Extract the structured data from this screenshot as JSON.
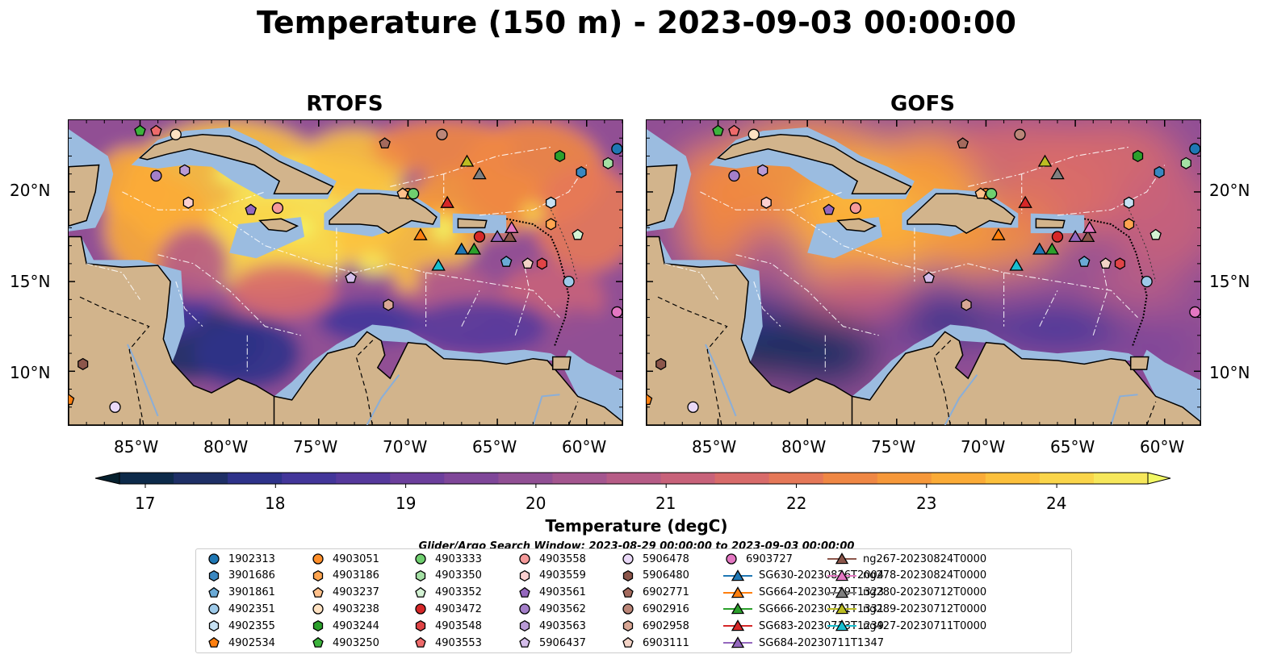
{
  "title": "Temperature (150 m) - 2023-09-03 00:00:00",
  "colors": {
    "land": "#d2b48c",
    "shelf": "#9bbce0",
    "river": "#8aaed8",
    "cmap": [
      "#06202e",
      "#0d2a4a",
      "#1e2f66",
      "#2e328a",
      "#43369a",
      "#56399c",
      "#6c3f9c",
      "#7f4699",
      "#914f94",
      "#a4568f",
      "#b65c86",
      "#c8627a",
      "#d86b6a",
      "#e57858",
      "#ef8744",
      "#f6983a",
      "#fbab37",
      "#fcc03c",
      "#fad54a",
      "#f6e75b",
      "#f2f865"
    ]
  },
  "colorbar": {
    "label": "Temperature (degC)",
    "ticks": [
      "17",
      "18",
      "19",
      "20",
      "21",
      "22",
      "23",
      "24"
    ]
  },
  "search_window": "Glider/Argo Search Window: 2023-08-29 00:00:00 to 2023-09-03 00:00:00",
  "panels": [
    {
      "title": "RTOFS"
    },
    {
      "title": "GOFS"
    }
  ],
  "axes": {
    "lon_labels": [
      "85°W",
      "80°W",
      "75°W",
      "70°W",
      "65°W",
      "60°W"
    ],
    "lat_labels": [
      "20°N",
      "15°N",
      "10°N"
    ]
  },
  "chart_data": {
    "type": "map",
    "lon_range": [
      -89,
      -58
    ],
    "lat_range": [
      7,
      24
    ],
    "argo_floats": [
      {
        "id": "1902313",
        "color": "#1f77b4",
        "marker": "circle"
      },
      {
        "id": "3901686",
        "color": "#3a87c0",
        "marker": "hexagon"
      },
      {
        "id": "3901861",
        "color": "#6aaad6",
        "marker": "pentagon"
      },
      {
        "id": "4902351",
        "color": "#9ecae9",
        "marker": "circle"
      },
      {
        "id": "4902355",
        "color": "#c6e1f3",
        "marker": "hexagon"
      },
      {
        "id": "4902534",
        "color": "#ff7f0e",
        "marker": "pentagon"
      },
      {
        "id": "4903051",
        "color": "#ff8f2a",
        "marker": "circle"
      },
      {
        "id": "4903186",
        "color": "#ffa550",
        "marker": "hexagon"
      },
      {
        "id": "4903237",
        "color": "#ffc08a",
        "marker": "pentagon"
      },
      {
        "id": "4903238",
        "color": "#ffe2c2",
        "marker": "circle"
      },
      {
        "id": "4903244",
        "color": "#2ca02c",
        "marker": "hexagon"
      },
      {
        "id": "4903250",
        "color": "#3cb33c",
        "marker": "pentagon"
      },
      {
        "id": "4903333",
        "color": "#6fcf6f",
        "marker": "circle"
      },
      {
        "id": "4903350",
        "color": "#a4e0a4",
        "marker": "hexagon"
      },
      {
        "id": "4903352",
        "color": "#d4f3d4",
        "marker": "pentagon"
      },
      {
        "id": "4903472",
        "color": "#d62728",
        "marker": "circle"
      },
      {
        "id": "4903548",
        "color": "#e04446",
        "marker": "hexagon"
      },
      {
        "id": "4903553",
        "color": "#ee6a6a",
        "marker": "pentagon"
      },
      {
        "id": "4903558",
        "color": "#f59a9a",
        "marker": "circle"
      },
      {
        "id": "4903559",
        "color": "#fcd0d0",
        "marker": "hexagon"
      },
      {
        "id": "4903561",
        "color": "#9467bd",
        "marker": "pentagon"
      },
      {
        "id": "4903562",
        "color": "#a47fc9",
        "marker": "circle"
      },
      {
        "id": "4903563",
        "color": "#b99ad6",
        "marker": "hexagon"
      },
      {
        "id": "5906437",
        "color": "#d4bdea",
        "marker": "pentagon"
      },
      {
        "id": "5906478",
        "color": "#ead9f8",
        "marker": "circle"
      },
      {
        "id": "5906480",
        "color": "#8c564b",
        "marker": "hexagon"
      },
      {
        "id": "6902771",
        "color": "#a46a5d",
        "marker": "pentagon"
      },
      {
        "id": "6902916",
        "color": "#bb8678",
        "marker": "circle"
      },
      {
        "id": "6902958",
        "color": "#d9a795",
        "marker": "hexagon"
      },
      {
        "id": "6903111",
        "color": "#f3d3c6",
        "marker": "pentagon"
      },
      {
        "id": "6903727",
        "color": "#e377c2",
        "marker": "circle"
      }
    ],
    "gliders": [
      {
        "id": "SG630-20230826T2004",
        "color": "#1f77b4",
        "marker": "triangle"
      },
      {
        "id": "SG664-20230719T1323",
        "color": "#ff7f0e",
        "marker": "triangle"
      },
      {
        "id": "SG666-20230711T1331",
        "color": "#2ca02c",
        "marker": "triangle"
      },
      {
        "id": "SG683-20230713T1239",
        "color": "#d62728",
        "marker": "triangle"
      },
      {
        "id": "SG684-20230711T1347",
        "color": "#9467bd",
        "marker": "triangle"
      },
      {
        "id": "ng267-20230824T0000",
        "color": "#8c564b",
        "marker": "triangle"
      },
      {
        "id": "ng278-20230824T0000",
        "color": "#e377c2",
        "marker": "triangle"
      },
      {
        "id": "ng280-20230712T0000",
        "color": "#7f7f7f",
        "marker": "triangle"
      },
      {
        "id": "ng289-20230712T0000",
        "color": "#bcbd22",
        "marker": "triangle"
      },
      {
        "id": "ng427-20230711T0000",
        "color": "#17becf",
        "marker": "triangle"
      }
    ],
    "observations": [
      {
        "id": "1902313",
        "lon": -58.3,
        "lat": 22.4
      },
      {
        "id": "3901686",
        "lon": -60.3,
        "lat": 21.1
      },
      {
        "id": "3901861",
        "lon": -64.5,
        "lat": 16.1
      },
      {
        "id": "4902351",
        "lon": -61.0,
        "lat": 15.0
      },
      {
        "id": "4902355",
        "lon": -62.0,
        "lat": 19.4
      },
      {
        "id": "4902534",
        "lon": -89.0,
        "lat": 8.4
      },
      {
        "id": "4903051",
        "lon": -70.0,
        "lat": 19.9
      },
      {
        "id": "4903186",
        "lon": -62.0,
        "lat": 18.2
      },
      {
        "id": "4903237",
        "lon": -70.3,
        "lat": 19.9
      },
      {
        "id": "4903238",
        "lon": -83.0,
        "lat": 23.2
      },
      {
        "id": "4903244",
        "lon": -61.5,
        "lat": 22.0
      },
      {
        "id": "4903250",
        "lon": -85.0,
        "lat": 23.4
      },
      {
        "id": "4903333",
        "lon": -69.7,
        "lat": 19.9
      },
      {
        "id": "4903350",
        "lon": -58.8,
        "lat": 21.6
      },
      {
        "id": "4903352",
        "lon": -60.5,
        "lat": 17.6
      },
      {
        "id": "4903472",
        "lon": -66.0,
        "lat": 17.5
      },
      {
        "id": "4903548",
        "lon": -62.5,
        "lat": 16.0
      },
      {
        "id": "4903553",
        "lon": -84.1,
        "lat": 23.4
      },
      {
        "id": "4903558",
        "lon": -77.3,
        "lat": 19.1
      },
      {
        "id": "4903559",
        "lon": -82.3,
        "lat": 19.4
      },
      {
        "id": "4903561",
        "lon": -78.8,
        "lat": 19.0
      },
      {
        "id": "4903562",
        "lon": -84.1,
        "lat": 20.9
      },
      {
        "id": "4903563",
        "lon": -82.5,
        "lat": 21.2
      },
      {
        "id": "5906437",
        "lon": -73.2,
        "lat": 15.2
      },
      {
        "id": "5906478",
        "lon": -86.4,
        "lat": 8.0
      },
      {
        "id": "5906480",
        "lon": -88.2,
        "lat": 10.4
      },
      {
        "id": "6902771",
        "lon": -71.3,
        "lat": 22.7
      },
      {
        "id": "6902916",
        "lon": -68.1,
        "lat": 23.2
      },
      {
        "id": "6902958",
        "lon": -71.1,
        "lat": 13.7
      },
      {
        "id": "6903111",
        "lon": -63.3,
        "lat": 16.0
      },
      {
        "id": "6903727",
        "lon": -58.3,
        "lat": 13.3
      },
      {
        "id": "SG630-20230826T2004",
        "lon": -67.0,
        "lat": 16.8
      },
      {
        "id": "SG664-20230719T1323",
        "lon": -69.3,
        "lat": 17.6
      },
      {
        "id": "SG666-20230711T1331",
        "lon": -66.3,
        "lat": 16.8
      },
      {
        "id": "SG683-20230713T1239",
        "lon": -67.8,
        "lat": 19.4
      },
      {
        "id": "SG684-20230711T1347",
        "lon": -65.0,
        "lat": 17.5
      },
      {
        "id": "ng267-20230824T0000",
        "lon": -64.3,
        "lat": 17.5
      },
      {
        "id": "ng278-20230824T0000",
        "lon": -64.2,
        "lat": 18.0
      },
      {
        "id": "ng280-20230712T0000",
        "lon": -66.0,
        "lat": 21.0
      },
      {
        "id": "ng289-20230712T0000",
        "lon": -66.7,
        "lat": 21.7
      },
      {
        "id": "ng427-20230711T0000",
        "lon": -68.3,
        "lat": 15.9
      }
    ]
  }
}
